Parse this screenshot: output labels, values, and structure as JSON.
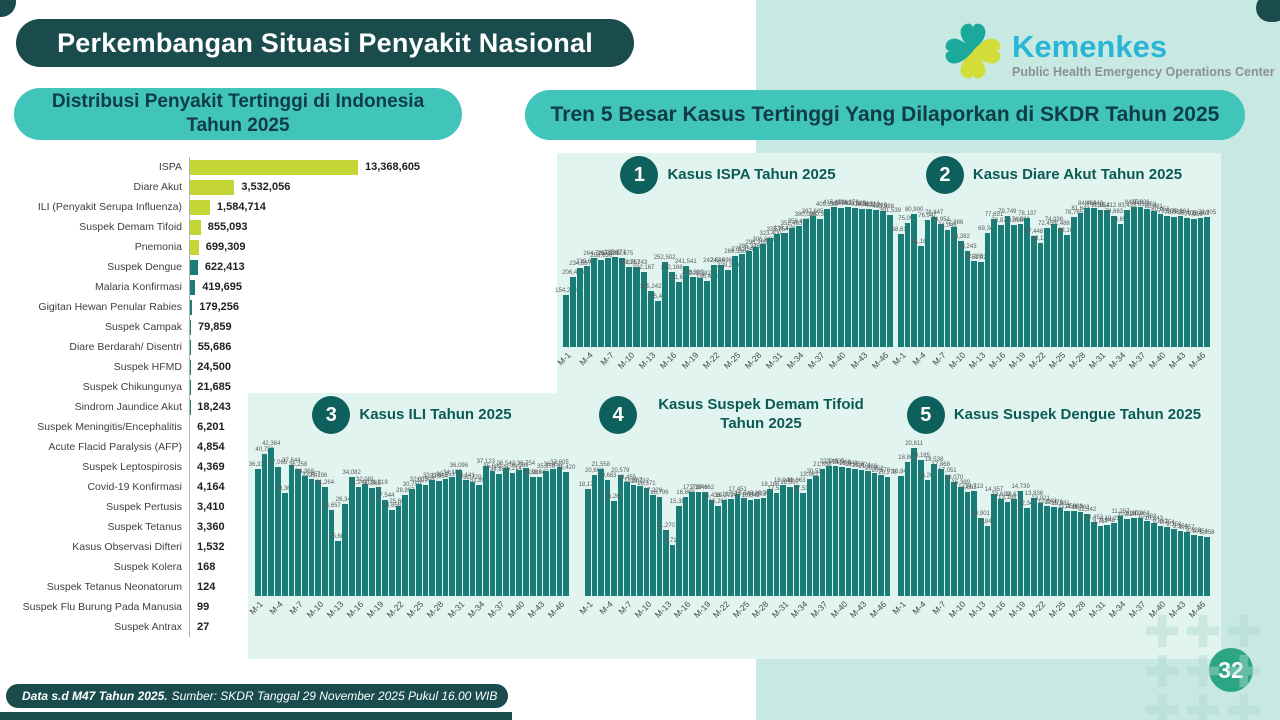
{
  "page": {
    "title": "Perkembangan Situasi Penyakit Nasional",
    "page_number": "32"
  },
  "logo": {
    "brand": "Kemenkes",
    "subtitle": "Public Health Emergency Operations Center"
  },
  "left_panel": {
    "header": "Distribusi Penyakit Tertinggi di Indonesia Tahun 2025"
  },
  "trend_section": {
    "header": "Tren 5 Besar Kasus Tertinggi Yang Dilaporkan di SKDR Tahun 2025",
    "weeks_count": 47,
    "x_tick_labels": [
      "M-1",
      "M-4",
      "M-7",
      "M-10",
      "M-13",
      "M-16",
      "M-19",
      "M-22",
      "M-25",
      "M-28",
      "M-31",
      "M-34",
      "M-37",
      "M-40",
      "M-43",
      "M-46"
    ]
  },
  "footer": {
    "bold": "Data s.d M47 Tahun 2025.",
    "regular": "Sumber: SKDR Tanggal 29 November 2025 Pukul 16.00 WIB"
  },
  "colors": {
    "dark_teal": "#1a4c4e",
    "header_pill": "#41c4b9",
    "mint_background": "#c8e9e2",
    "chart_panel": "#e2f4f0",
    "bar_teal": "#1a7c76",
    "bar_accent_green": "#c3d636",
    "kemenkes_cyan": "#29b6d6",
    "page_circle_green": "#2ca584"
  },
  "chart_data": [
    {
      "type": "bar",
      "orientation": "horizontal",
      "title": "Distribusi Penyakit Tertinggi di Indonesia Tahun 2025",
      "accent_top_n": 5,
      "categories": [
        "ISPA",
        "Diare Akut",
        "ILI (Penyakit Serupa Influenza)",
        "Suspek Demam Tifoid",
        "Pnemonia",
        "Suspek Dengue",
        "Malaria Konfirmasi",
        "Gigitan Hewan Penular Rabies",
        "Suspek Campak",
        "Diare Berdarah/ Disentri",
        "Suspek HFMD",
        "Suspek Chikungunya",
        "Sindrom Jaundice Akut",
        "Suspek Meningitis/Encephalitis",
        "Acute Flacid Paralysis (AFP)",
        "Suspek Leptospirosis",
        "Covid-19 Konfirmasi",
        "Suspek Pertusis",
        "Suspek Tetanus",
        "Kasus Observasi Difteri",
        "Suspek Kolera",
        "Suspek Tetanus Neonatorum",
        "Suspek Flu Burung Pada Manusia",
        "Suspek Antrax"
      ],
      "values": [
        13368605,
        3532056,
        1584714,
        855093,
        699309,
        622413,
        419695,
        179256,
        79859,
        55686,
        24500,
        21685,
        18243,
        6201,
        4854,
        4369,
        4164,
        3410,
        3360,
        1532,
        168,
        124,
        99,
        27
      ]
    },
    {
      "type": "bar",
      "rank": "1",
      "title": "Kasus ISPA Tahun 2025",
      "x_from": "M-1",
      "x_to": "M-47",
      "values": [
        154233,
        206426,
        234687,
        239857,
        264725,
        258636,
        262971,
        265871,
        262675,
        238757,
        238243,
        222167,
        165242,
        135411,
        252502,
        222168,
        191684,
        241541,
        208380,
        203382,
        196423,
        242546,
        242496,
        229230,
        269330,
        275354,
        286346,
        296365,
        306946,
        323400,
        335754,
        338426,
        352463,
        358425,
        380096,
        387685,
        380365,
        409235,
        415436,
        412592,
        414176,
        413685,
        410091,
        408563,
        407269,
        403988,
        391539
      ]
    },
    {
      "type": "bar",
      "rank": "2",
      "title": "Kasus Diare Akut Tahun 2025",
      "x_from": "M-1",
      "x_to": "M-47",
      "values": [
        68618,
        75098,
        80990,
        61163,
        76947,
        78847,
        74951,
        71045,
        72986,
        64382,
        58243,
        52186,
        51923,
        69342,
        77651,
        73871,
        79749,
        73896,
        74981,
        78137,
        67448,
        63117,
        72453,
        74938,
        72488,
        68166,
        78765,
        81643,
        84464,
        84648,
        82952,
        83412,
        79683,
        74653,
        83435,
        84926,
        85036,
        83958,
        82481,
        80956,
        79684,
        78953,
        79364,
        78405,
        77956,
        78461,
        78905
      ]
    },
    {
      "type": "bar",
      "rank": "3",
      "title": "Kasus ILI Tahun 2025",
      "x_from": "M-1",
      "x_to": "M-47",
      "values": [
        36338,
        40739,
        42364,
        37065,
        29363,
        37644,
        36258,
        34368,
        33457,
        33196,
        31264,
        24657,
        15688,
        26342,
        34082,
        31242,
        32081,
        30865,
        31319,
        27544,
        24658,
        25662,
        28897,
        30750,
        32035,
        31759,
        33186,
        32964,
        33453,
        34185,
        36096,
        33141,
        32720,
        31892,
        37123,
        35689,
        34859,
        36542,
        35214,
        36089,
        36754,
        33988,
        33945,
        35876,
        36458,
        37005,
        35420
      ]
    },
    {
      "type": "bar",
      "rank": "4",
      "title": "Kasus Suspek Demam Tifoid Tahun 2025",
      "x_from": "M-1",
      "x_to": "M-47",
      "values": [
        18177,
        20662,
        21558,
        19683,
        16266,
        20579,
        19455,
        18867,
        18737,
        18371,
        17229,
        16796,
        11270,
        8716,
        15388,
        16869,
        17716,
        17748,
        17662,
        16438,
        15266,
        16272,
        16582,
        17451,
        16648,
        16342,
        16578,
        16763,
        18186,
        17534,
        18948,
        18507,
        18863,
        17536,
        19862,
        20514,
        21658,
        22145,
        22135,
        21963,
        21842,
        21658,
        21474,
        21289,
        20952,
        20578,
        20278
      ]
    },
    {
      "type": "bar",
      "rank": "5",
      "title": "Kasus Suspek Dengue Tahun 2025",
      "x_from": "M-1",
      "x_to": "M-47",
      "values": [
        16840,
        18868,
        20811,
        19185,
        16265,
        18538,
        17868,
        17051,
        16070,
        15389,
        14683,
        14713,
        10901,
        9846,
        14357,
        13619,
        13188,
        13674,
        14739,
        12348,
        13836,
        13021,
        12643,
        12476,
        12381,
        11958,
        11986,
        11763,
        11542,
        10453,
        9787,
        9948,
        10251,
        11257,
        10824,
        10928,
        10964,
        10482,
        10243,
        9862,
        9754,
        9358,
        9164,
        8957,
        8638,
        8454,
        8258
      ]
    }
  ]
}
